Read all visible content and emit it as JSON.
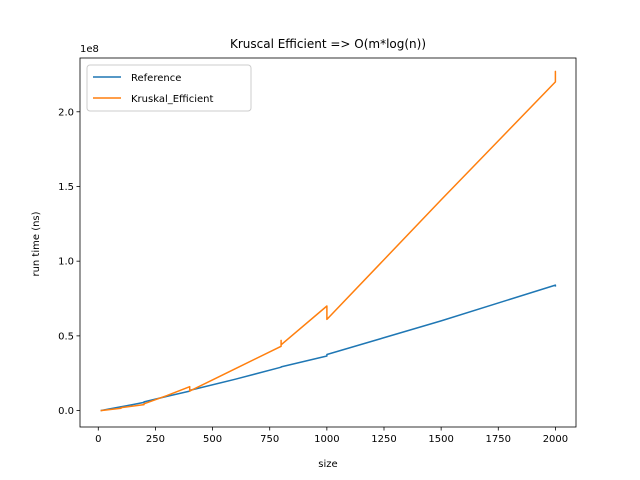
{
  "chart_data": {
    "type": "line",
    "title": "Kruscal Efficient => O(m*log(n))",
    "xlabel": "size",
    "ylabel": "run time (ns)",
    "y_multiplier_label": "1e8",
    "xlim": [
      -80,
      2090
    ],
    "ylim": [
      -0.11,
      2.36
    ],
    "x_ticks": [
      0,
      250,
      500,
      750,
      1000,
      1250,
      1500,
      1750,
      2000
    ],
    "y_ticks": [
      0.0,
      0.5,
      1.0,
      1.5,
      2.0
    ],
    "y_tick_labels": [
      "0.0",
      "0.5",
      "1.0",
      "1.5",
      "2.0"
    ],
    "legend_position": "top-left",
    "grid": false,
    "series": [
      {
        "name": "Reference",
        "color": "#1f77b4",
        "points": [
          [
            10,
            0.0
          ],
          [
            50,
            0.012
          ],
          [
            100,
            0.025
          ],
          [
            150,
            0.04
          ],
          [
            200,
            0.055
          ],
          [
            200,
            0.058
          ],
          [
            300,
            0.095
          ],
          [
            400,
            0.13
          ],
          [
            400,
            0.135
          ],
          [
            600,
            0.21
          ],
          [
            800,
            0.29
          ],
          [
            800,
            0.292
          ],
          [
            1000,
            0.365
          ],
          [
            1000,
            0.375
          ],
          [
            1500,
            0.6
          ],
          [
            2000,
            0.84
          ],
          [
            2000,
            0.83
          ]
        ]
      },
      {
        "name": "Kruskal_Efficient",
        "color": "#ff7f0e",
        "points": [
          [
            10,
            0.0
          ],
          [
            100,
            0.015
          ],
          [
            100,
            0.02
          ],
          [
            200,
            0.04
          ],
          [
            200,
            0.045
          ],
          [
            300,
            0.1
          ],
          [
            400,
            0.16
          ],
          [
            400,
            0.13
          ],
          [
            600,
            0.28
          ],
          [
            800,
            0.43
          ],
          [
            800,
            0.47
          ],
          [
            800,
            0.44
          ],
          [
            1000,
            0.7
          ],
          [
            1000,
            0.61
          ],
          [
            1500,
            1.41
          ],
          [
            2000,
            2.2
          ],
          [
            2000,
            2.27
          ],
          [
            2000,
            2.21
          ]
        ]
      }
    ]
  }
}
